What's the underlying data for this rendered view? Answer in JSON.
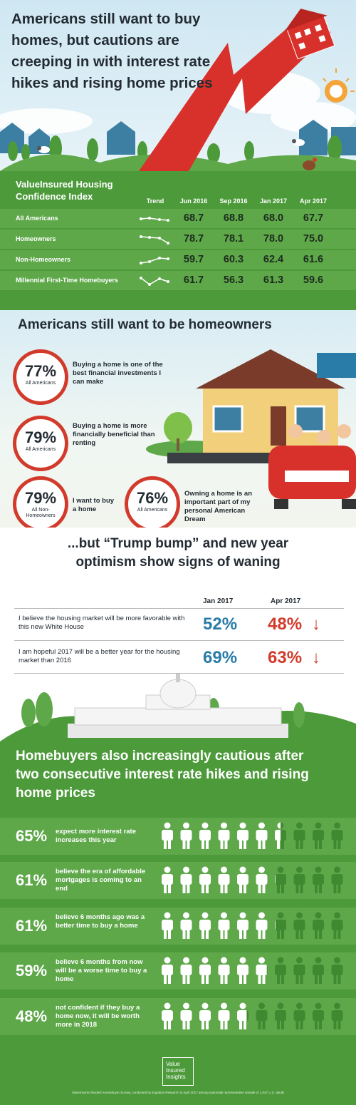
{
  "hero": {
    "title": "Americans still want to buy homes, but cautions are creeping in with interest rate hikes and rising home prices"
  },
  "confidence_index": {
    "title": "ValueInsured Housing Confidence Index",
    "headers": [
      "Trend",
      "Jun 2016",
      "Sep 2016",
      "Jan 2017",
      "Apr 2017"
    ],
    "rows": [
      {
        "label": "All Americans",
        "values": [
          "68.7",
          "68.8",
          "68.0",
          "67.7"
        ]
      },
      {
        "label": "Homeowners",
        "values": [
          "78.7",
          "78.1",
          "78.0",
          "75.0"
        ]
      },
      {
        "label": "Non-Homeowners",
        "values": [
          "59.7",
          "60.3",
          "62.4",
          "61.6"
        ]
      },
      {
        "label": "Millennial First-Time Homebuyers",
        "values": [
          "61.7",
          "56.3",
          "61.3",
          "59.6"
        ]
      }
    ]
  },
  "homeowners": {
    "title": "Americans still want to be homeowners",
    "stats": [
      {
        "pct": "77%",
        "group": "All Americans",
        "statement": "Buying a home is one of the best financial investments I can make"
      },
      {
        "pct": "79%",
        "group": "All Americans",
        "statement": "Buying a home is more financially beneficial than renting"
      },
      {
        "pct": "79%",
        "group": "All Non-Homeowners",
        "statement": "I want to buy a home"
      },
      {
        "pct": "76%",
        "group": "All Americans",
        "statement": "Owning a home is an important part of my personal American Dream"
      }
    ]
  },
  "trump": {
    "title": "...but “Trump bump” and new year optimism show signs of waning",
    "col_a": "Jan 2017",
    "col_b": "Apr 2017",
    "rows": [
      {
        "question": "I believe the housing market will be more favorable with this new White House",
        "jan": "52%",
        "apr": "48%",
        "arrow": "↓"
      },
      {
        "question": "I am hopeful 2017 will be a better year for the housing market than 2016",
        "jan": "69%",
        "apr": "63%",
        "arrow": "↓"
      }
    ]
  },
  "cautious": {
    "title": "Homebuyers also increasingly cautious after two consecutive interest rate hikes and rising home prices",
    "rows": [
      {
        "pct": "65%",
        "desc": "expect more interest rate increases this year",
        "fraction": 0.65
      },
      {
        "pct": "61%",
        "desc": "believe the era of affordable mortgages is coming to an end",
        "fraction": 0.61
      },
      {
        "pct": "61%",
        "desc": "believe 6 months ago was a better time to buy a home",
        "fraction": 0.61
      },
      {
        "pct": "59%",
        "desc": "believe 6 months from now will be a worse time to buy a home",
        "fraction": 0.59
      },
      {
        "pct": "48%",
        "desc": "not confident if they buy a home now, it will be worth more in 2018",
        "fraction": 0.48
      }
    ]
  },
  "footer": {
    "logo_line1": "Value",
    "logo_line2": "Insured",
    "logo_line3": "Insights",
    "note": "ValueInsured Modern Homebuyer Survey, conducted by Equation Research in April 2017 among nationally representative sample of 1,047 U.S. adults"
  },
  "colors": {
    "green": "#4c9a3a",
    "light_green": "#5ea84a",
    "red": "#d23b2b",
    "blue": "#2a7ca8",
    "dark": "#232b33"
  }
}
